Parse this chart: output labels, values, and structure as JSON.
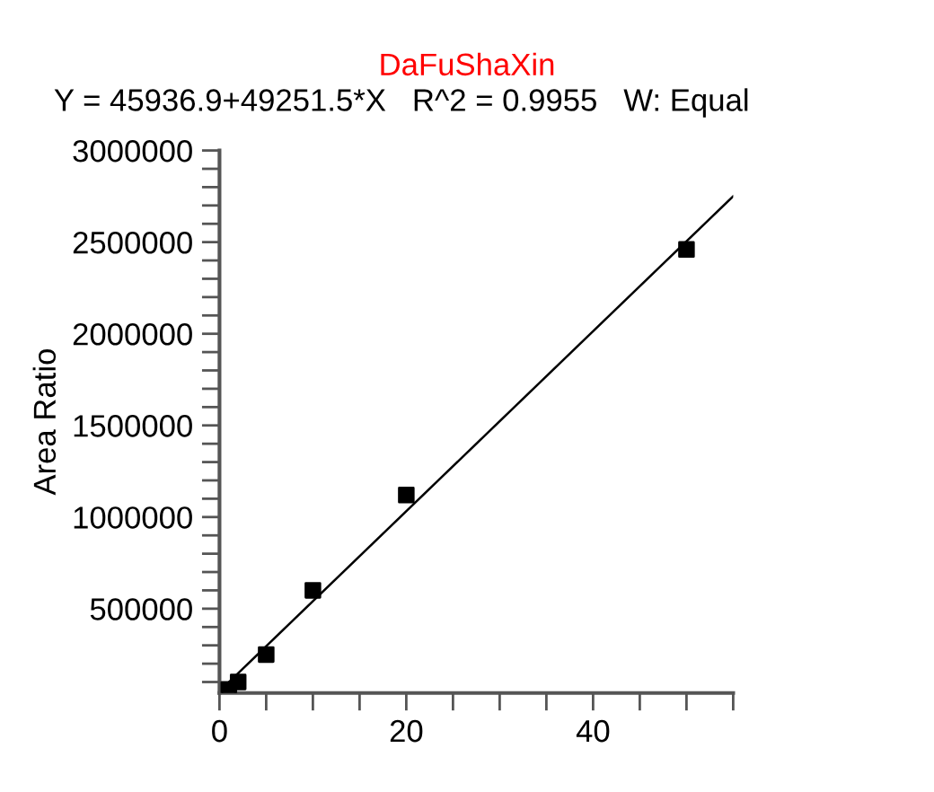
{
  "chart_data": {
    "type": "scatter",
    "title": "DaFuShaXin",
    "subtitle": "Y = 45936.9+49251.5*X   R^2 = 0.9955   W: Equal",
    "ylabel": "Area Ratio",
    "x": [
      1,
      2,
      5,
      10,
      20,
      50
    ],
    "series": [
      {
        "color": "#000000",
        "marker": "square",
        "values": [
          60000,
          100000,
          250000,
          600000,
          1120000,
          2460000
        ]
      },
      {
        "type": "line",
        "color": "#000000",
        "x": [
          0,
          55
        ],
        "values": [
          50000,
          2750000
        ]
      }
    ],
    "xlim": [
      0,
      55
    ],
    "ylim": [
      40000,
      3000000
    ],
    "xticks": [
      0,
      {
        "value": 5,
        "label": null
      },
      {
        "value": 10,
        "label": null
      },
      {
        "value": 15,
        "label": null
      },
      20,
      {
        "value": 25,
        "label": null
      },
      {
        "value": 30,
        "label": null
      },
      {
        "value": 35,
        "label": null
      },
      40,
      {
        "value": 45,
        "label": null
      },
      {
        "value": 50,
        "label": null
      },
      {
        "value": 55,
        "label": null
      }
    ],
    "yticks": [
      {
        "value": 100000,
        "label": null
      },
      {
        "value": 200000,
        "label": null
      },
      {
        "value": 300000,
        "label": null
      },
      {
        "value": 400000,
        "label": null
      },
      500000,
      {
        "value": 600000,
        "label": null
      },
      {
        "value": 700000,
        "label": null
      },
      {
        "value": 800000,
        "label": null
      },
      {
        "value": 900000,
        "label": null
      },
      1000000,
      {
        "value": 1100000,
        "label": null
      },
      {
        "value": 1200000,
        "label": null
      },
      {
        "value": 1300000,
        "label": null
      },
      {
        "value": 1400000,
        "label": null
      },
      1500000,
      {
        "value": 1600000,
        "label": null
      },
      {
        "value": 1700000,
        "label": null
      },
      {
        "value": 1800000,
        "label": null
      },
      {
        "value": 1900000,
        "label": null
      },
      2000000,
      {
        "value": 2100000,
        "label": null
      },
      {
        "value": 2200000,
        "label": null
      },
      {
        "value": 2300000,
        "label": null
      },
      {
        "value": 2400000,
        "label": null
      },
      2500000,
      {
        "value": 2600000,
        "label": null
      },
      {
        "value": 2700000,
        "label": null
      },
      {
        "value": 2800000,
        "label": null
      },
      {
        "value": 2900000,
        "label": null
      },
      3000000
    ],
    "grid": false,
    "legend": false
  }
}
